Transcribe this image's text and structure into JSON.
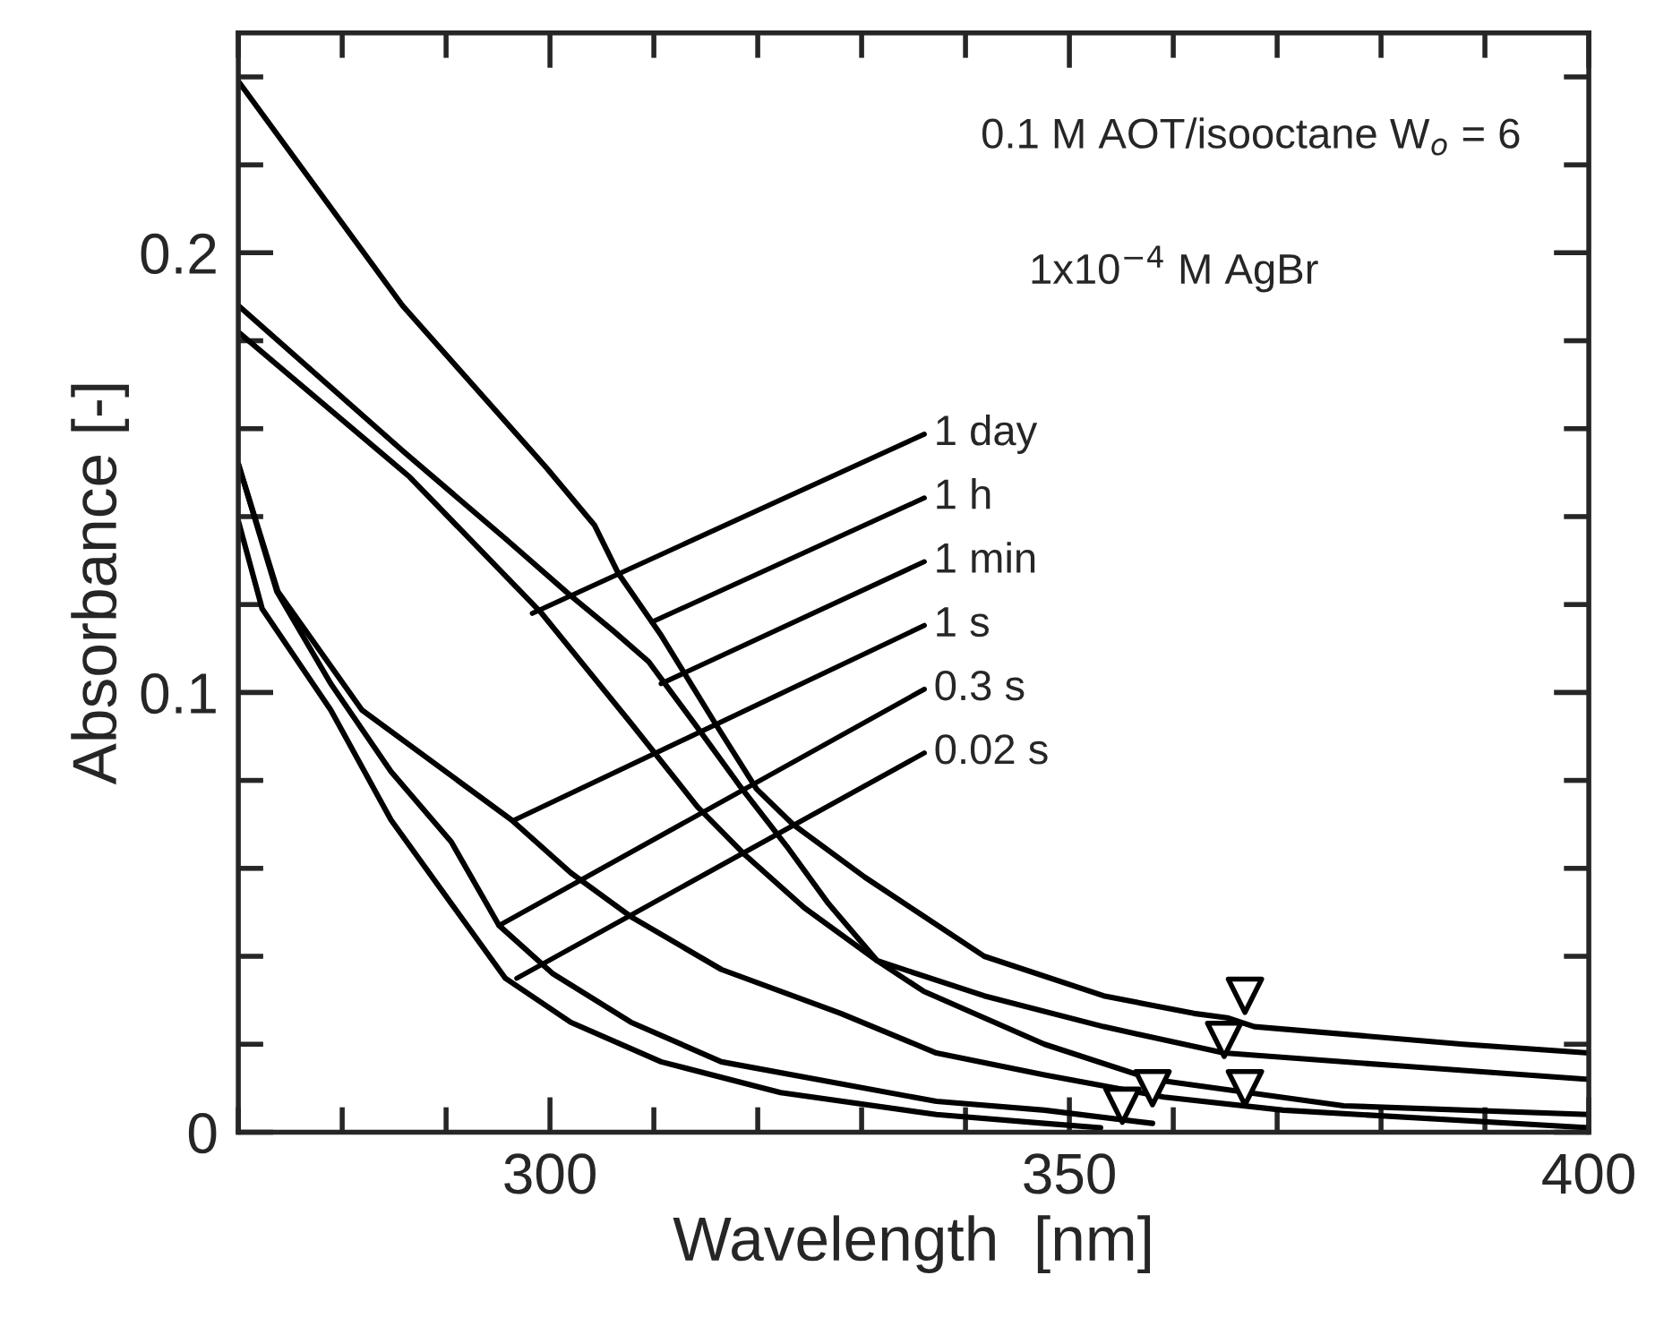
{
  "chart_data": {
    "type": "line",
    "xlabel": "Wavelength  [nm]",
    "ylabel": "Absorbance [-]",
    "xlim": [
      270,
      400
    ],
    "ylim": [
      0,
      0.25
    ],
    "xticks": [
      {
        "value": 270,
        "label": null
      },
      {
        "value": 280,
        "label": null
      },
      {
        "value": 290,
        "label": null
      },
      300,
      {
        "value": 310,
        "label": null
      },
      {
        "value": 320,
        "label": null
      },
      {
        "value": 330,
        "label": null
      },
      {
        "value": 340,
        "label": null
      },
      350,
      {
        "value": 360,
        "label": null
      },
      {
        "value": 370,
        "label": null
      },
      {
        "value": 380,
        "label": null
      },
      {
        "value": 390,
        "label": null
      },
      400
    ],
    "yticks": [
      0,
      {
        "value": 0.02,
        "label": null
      },
      {
        "value": 0.04,
        "label": null
      },
      {
        "value": 0.06,
        "label": null
      },
      {
        "value": 0.08,
        "label": null
      },
      0.1,
      {
        "value": 0.12,
        "label": null
      },
      {
        "value": 0.14,
        "label": null
      },
      {
        "value": 0.16,
        "label": null
      },
      {
        "value": 0.18,
        "label": null
      },
      0.2,
      {
        "value": 0.22,
        "label": null
      },
      {
        "value": 0.24,
        "label": null
      }
    ],
    "grid": false,
    "legend": false,
    "line_style": "solid",
    "marker": "none",
    "series": [
      {
        "color": "#000000",
        "x": [
          270,
          285.8,
          299.7,
          304.3,
          306.6,
          310.7,
          315.9,
          319.9,
          323.4,
          330.3,
          341.8,
          353.3,
          362.0,
          365.2,
          367.8,
          387.9,
          400
        ],
        "values": [
          0.239,
          0.188,
          0.151,
          0.138,
          0.127,
          0.113,
          0.093,
          0.078,
          0.07,
          0.058,
          0.04,
          0.031,
          0.027,
          0.026,
          0.024,
          0.02,
          0.018
        ]
      },
      {
        "color": "#000000",
        "x": [
          270,
          285.8,
          295.7,
          302.0,
          306.1,
          309.5,
          314.2,
          318.2,
          322.8,
          326.8,
          331.5,
          341.8,
          353.3,
          364.9,
          382.2,
          400
        ],
        "values": [
          0.188,
          0.155,
          0.135,
          0.122,
          0.114,
          0.107,
          0.092,
          0.079,
          0.065,
          0.052,
          0.039,
          0.031,
          0.024,
          0.018,
          0.015,
          0.012
        ]
      },
      {
        "color": "#000000",
        "x": [
          270,
          286.5,
          299.2,
          307.8,
          314.2,
          318.8,
          324.5,
          331.5,
          336.0,
          347.6,
          358.0,
          376.4,
          400
        ],
        "values": [
          0.182,
          0.149,
          0.118,
          0.093,
          0.074,
          0.063,
          0.051,
          0.039,
          0.032,
          0.02,
          0.012,
          0.006,
          0.004
        ]
      },
      {
        "color": "#000000",
        "x": [
          270,
          273.8,
          281.9,
          296.3,
          302.0,
          307.8,
          316.5,
          328.0,
          337.2,
          347.6,
          359.1,
          370.6,
          400
        ],
        "values": [
          0.152,
          0.123,
          0.096,
          0.071,
          0.059,
          0.049,
          0.037,
          0.027,
          0.018,
          0.013,
          0.008,
          0.005,
          0.001
        ]
      },
      {
        "color": "#000000",
        "x": [
          270,
          273.7,
          278.9,
          284.7,
          290.5,
          295.1,
          300.3,
          307.8,
          316.5,
          337.2,
          347.6,
          358.0
        ],
        "values": [
          0.152,
          0.123,
          0.102,
          0.082,
          0.066,
          0.047,
          0.036,
          0.025,
          0.016,
          0.007,
          0.005,
          0.002
        ]
      },
      {
        "color": "#000000",
        "x": [
          270,
          272.3,
          278.9,
          284.7,
          290.5,
          295.7,
          302.0,
          310.7,
          322.2,
          337.2,
          347.6,
          353.0
        ],
        "values": [
          0.139,
          0.119,
          0.096,
          0.071,
          0.052,
          0.035,
          0.025,
          0.016,
          0.009,
          0.004,
          0.002,
          0.001
        ]
      },
      {
        "type": "scatter",
        "marker": "triangle",
        "color": "#000000",
        "x": [
          366.9,
          364.9,
          366.9,
          358.0,
          355.1
        ],
        "values": [
          0.031,
          0.021,
          0.01,
          0.01,
          0.006
        ]
      }
    ],
    "annotations": [
      "0.1 M AOT/isooctane W$_{o}$ = 6",
      "1x10$^{−4}$ M AgBr",
      {
        "text": "1 day",
        "x": 298.3,
        "y": 0.118
      },
      {
        "text": "1 h",
        "x": 309.8,
        "y": 0.116
      },
      {
        "text": "1 min",
        "x": 310.7,
        "y": 0.102
      },
      {
        "text": "1 s",
        "x": 296.6,
        "y": 0.071
      },
      {
        "text": "0.3 s",
        "x": 295.1,
        "y": 0.047
      },
      {
        "text": "0.02 s",
        "x": 296.8,
        "y": 0.035
      }
    ]
  }
}
